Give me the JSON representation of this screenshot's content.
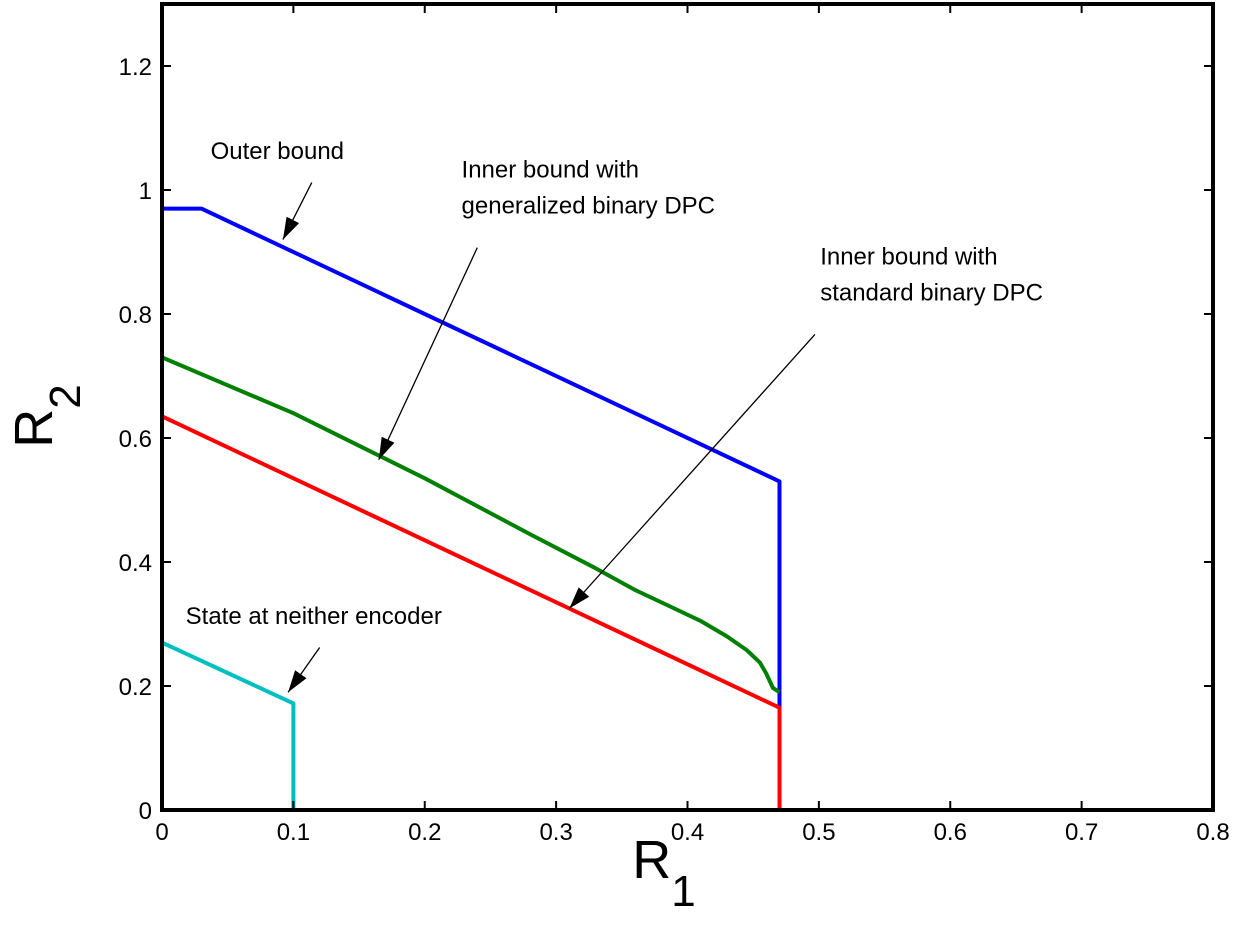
{
  "chart_data": {
    "type": "line",
    "title": "",
    "xlabel": "R",
    "xlabel_sub": "1",
    "ylabel": "R",
    "ylabel_sub": "2",
    "xlim": [
      0,
      0.8
    ],
    "ylim": [
      0,
      1.3
    ],
    "xticks": [
      0,
      0.1,
      0.2,
      0.3,
      0.4,
      0.5,
      0.6,
      0.7,
      0.8
    ],
    "xtick_labels": [
      "0",
      "0.1",
      "0.2",
      "0.3",
      "0.4",
      "0.5",
      "0.6",
      "0.7",
      "0.8"
    ],
    "yticks": [
      0,
      0.2,
      0.4,
      0.6,
      0.8,
      1.0,
      1.2
    ],
    "ytick_labels": [
      "0",
      "0.2",
      "0.4",
      "0.6",
      "0.8",
      "1",
      "1.2"
    ],
    "grid": false,
    "series": [
      {
        "color": "#0000ff",
        "points": [
          [
            0,
            0.97
          ],
          [
            0.03,
            0.97
          ],
          [
            0.47,
            0.53
          ],
          [
            0.47,
            0
          ]
        ]
      },
      {
        "color": "#008000",
        "points": [
          [
            0,
            0.73
          ],
          [
            0.1,
            0.64
          ],
          [
            0.2,
            0.535
          ],
          [
            0.28,
            0.445
          ],
          [
            0.33,
            0.39
          ],
          [
            0.36,
            0.355
          ],
          [
            0.39,
            0.325
          ],
          [
            0.41,
            0.305
          ],
          [
            0.43,
            0.28
          ],
          [
            0.445,
            0.258
          ],
          [
            0.455,
            0.238
          ],
          [
            0.46,
            0.22
          ],
          [
            0.465,
            0.197
          ],
          [
            0.47,
            0.19
          ]
        ]
      },
      {
        "color": "#ff0000",
        "points": [
          [
            0,
            0.635
          ],
          [
            0.47,
            0.165
          ],
          [
            0.47,
            0
          ]
        ]
      },
      {
        "color": "#00bfbf",
        "points": [
          [
            0,
            0.27
          ],
          [
            0.1,
            0.172
          ],
          [
            0.1,
            0
          ]
        ]
      }
    ],
    "annotations": [
      {
        "lines": [
          "Outer bound"
        ],
        "text_at": [
          0.037,
          1.05
        ],
        "line_from": [
          0.114,
          1.012
        ],
        "arrow_to": [
          0.092,
          0.92
        ]
      },
      {
        "lines": [
          "Inner bound with",
          "generalized binary DPC"
        ],
        "text_at": [
          0.228,
          1.02
        ],
        "line_from": [
          0.24,
          0.907
        ],
        "arrow_to": [
          0.165,
          0.565
        ]
      },
      {
        "lines": [
          "Inner bound with",
          "standard binary DPC"
        ],
        "text_at": [
          0.501,
          0.88
        ],
        "line_from": [
          0.497,
          0.767
        ],
        "arrow_to": [
          0.31,
          0.325
        ]
      },
      {
        "lines": [
          "State at neither encoder"
        ],
        "text_at": [
          0.018,
          0.3
        ],
        "line_from": [
          0.12,
          0.262
        ],
        "arrow_to": [
          0.096,
          0.19
        ]
      }
    ]
  }
}
